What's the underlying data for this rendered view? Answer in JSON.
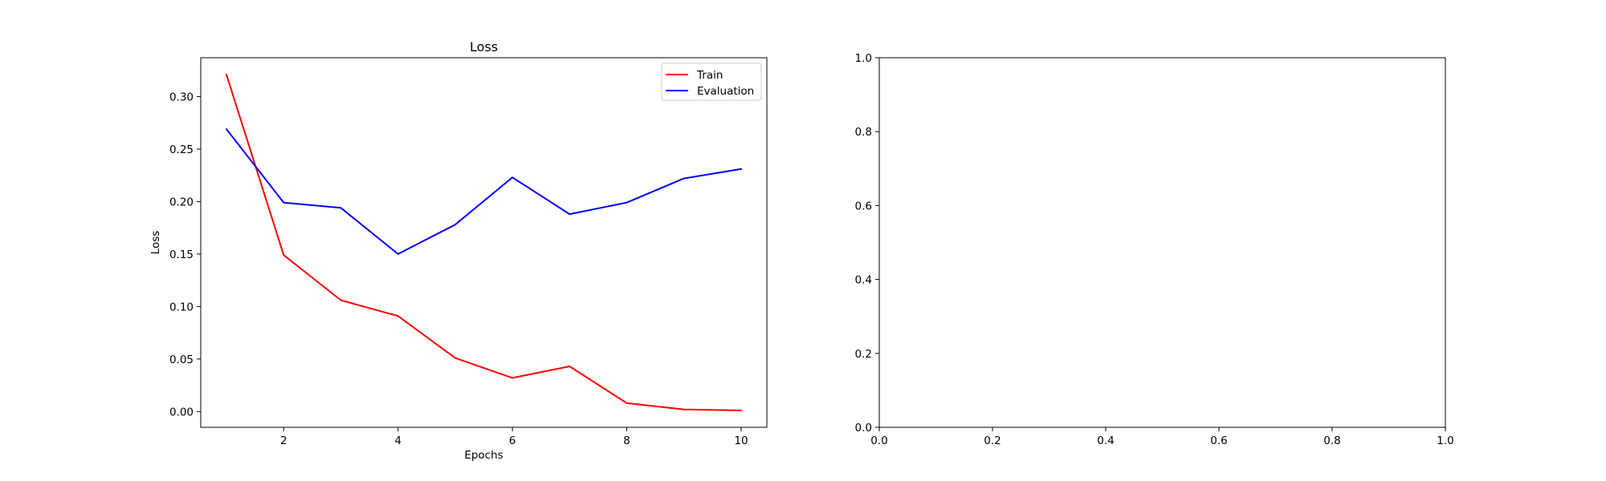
{
  "chart_data": [
    {
      "type": "line",
      "title": "Loss",
      "xlabel": "Epochs",
      "ylabel": "Loss",
      "x": [
        1,
        2,
        3,
        4,
        5,
        6,
        7,
        8,
        9,
        10
      ],
      "xlim": [
        0.55,
        10.45
      ],
      "ylim": [
        -0.015,
        0.337
      ],
      "xticks": [
        2,
        4,
        6,
        8,
        10
      ],
      "xtick_labels": [
        "2",
        "4",
        "6",
        "8",
        "10"
      ],
      "yticks": [
        0.0,
        0.05,
        0.1,
        0.15,
        0.2,
        0.25,
        0.3
      ],
      "ytick_labels": [
        "0.00",
        "0.05",
        "0.10",
        "0.15",
        "0.20",
        "0.25",
        "0.30"
      ],
      "grid": false,
      "legend_position": "top-right",
      "series": [
        {
          "name": "Train",
          "color": "#ff0000",
          "values": [
            0.321,
            0.149,
            0.106,
            0.091,
            0.051,
            0.032,
            0.043,
            0.008,
            0.002,
            0.001
          ]
        },
        {
          "name": "Evaluation",
          "color": "#0000ff",
          "values": [
            0.269,
            0.199,
            0.194,
            0.15,
            0.178,
            0.223,
            0.188,
            0.199,
            0.222,
            0.231
          ]
        }
      ]
    },
    {
      "type": "line",
      "title": "",
      "xlabel": "",
      "ylabel": "",
      "xlim": [
        0.0,
        1.0
      ],
      "ylim": [
        0.0,
        1.0
      ],
      "xticks": [
        0.0,
        0.2,
        0.4,
        0.6,
        0.8,
        1.0
      ],
      "xtick_labels": [
        "0.0",
        "0.2",
        "0.4",
        "0.6",
        "0.8",
        "1.0"
      ],
      "yticks": [
        0.0,
        0.2,
        0.4,
        0.6,
        0.8,
        1.0
      ],
      "ytick_labels": [
        "0.0",
        "0.2",
        "0.4",
        "0.6",
        "0.8",
        "1.0"
      ],
      "grid": false,
      "series": []
    }
  ]
}
